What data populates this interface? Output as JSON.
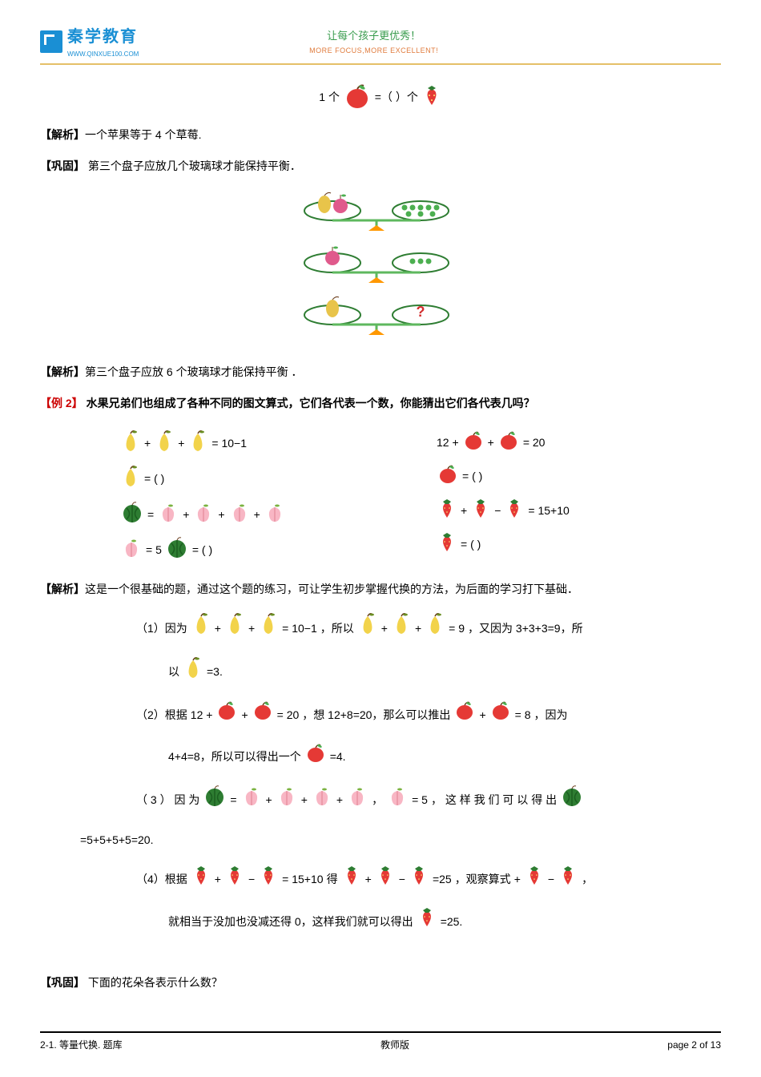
{
  "header": {
    "logo_text": "秦学教育",
    "logo_sub": "WWW.QINXUE100.COM",
    "slogan_cn": "让每个孩子更优秀！",
    "slogan_en": "MORE FOCUS,MORE EXCELLENT!"
  },
  "colors": {
    "brand_blue": "#1a8fd4",
    "accent_gold": "#e5c068",
    "slogan_green": "#3a9c4e",
    "slogan_orange": "#e07b3c",
    "red": "#c00000",
    "apple_red": "#e53935",
    "apple_leaf": "#4caf50",
    "pear_yellow": "#f2d34b",
    "pear_leaf": "#6b8e23",
    "peach_pink": "#f8b6c4",
    "peach_leaf": "#7cb342",
    "melon_green": "#2e7d32",
    "melon_stripe": "#1b5e20",
    "strawberry_red": "#e53935",
    "strawberry_leaf": "#2e7d32",
    "balance_plate": "#5eb85e",
    "balance_base": "#ff9800",
    "plate_outline": "#2e7d32",
    "dot_green": "#4caf50",
    "pear_balance": "#e8c44a",
    "peach_balance": "#e05a8c"
  },
  "top_eq": {
    "prefix": "1 个",
    "mid": " =（        ）个 "
  },
  "analysis1": {
    "label": "【解析】",
    "text": "一个苹果等于 4 个草莓."
  },
  "gonggu1": {
    "label": "【巩固】",
    "text": "  第三个盘子应放几个玻璃球才能保持平衡．"
  },
  "analysis2": {
    "label": "【解析】",
    "text": "第三个盘子应放 6 个玻璃球才能保持平衡 ．"
  },
  "example2": {
    "label": "【例 2】",
    "text": " 水果兄弟们也组成了各种不同的图文算式，它们各代表一个数，你能猜出它们各代表几吗？"
  },
  "eq_set": {
    "left": [
      {
        "items": [
          "pear",
          "+",
          "pear",
          "+",
          "pear",
          "= 10−1"
        ]
      },
      {
        "items": [
          "pear",
          "=  (     )"
        ]
      },
      {
        "items": [
          "melon",
          "=",
          "peach",
          "+",
          "peach",
          "+",
          "peach",
          "+",
          "peach"
        ]
      },
      {
        "items": [
          "peach",
          "= 5    ",
          "melon",
          " =  (     )"
        ]
      }
    ],
    "right": [
      {
        "items": [
          "12 +",
          "apple",
          "+",
          "apple",
          "= 20"
        ]
      },
      {
        "items": [
          "apple",
          "=  (     )"
        ]
      },
      {
        "items": [
          "strawberry",
          "+",
          "strawberry",
          "−",
          "strawberry",
          "= 15+10"
        ]
      },
      {
        "items": [
          "strawberry",
          "=  (     )"
        ]
      }
    ]
  },
  "analysis3": {
    "label": "【解析】",
    "text": "这是一个很基础的题，通过这个题的练习，可让学生初步掌握代换的方法，为后面的学习打下基础．"
  },
  "solutions": {
    "s1_a": "（1）因为",
    "s1_b": "= 10−1",
    "s1_c": "，所以",
    "s1_d": "= 9",
    "s1_e": "，又因为 3+3+3=9，所",
    "s1_f": "以",
    "s1_g": "=3.",
    "s2_a": "（2）根据",
    "s2_b": "12 +",
    "s2_c": "= 20",
    "s2_d": "，想 12+8=20，那么可以推出",
    "s2_e": "= 8",
    "s2_f": "，因为",
    "s2_g": "4+4=8，所以可以得出一个",
    "s2_h": "=4.",
    "s3_a": "（ 3 ） 因 为",
    "s3_b": "，",
    "s3_c": "= 5",
    "s3_d": "， 这 样 我 们 可 以 得 出",
    "s3_e": "=5+5+5+5=20.",
    "s4_a": "（4）根据",
    "s4_b": "= 15+10",
    "s4_c": "得",
    "s4_d": "=25",
    "s4_e": "，观察算式",
    "s4_f": "，",
    "s4_g": "就相当于没加也没减还得 0，这样我们就可以得出",
    "s4_h": "=25."
  },
  "gonggu2": {
    "label": "【巩固】",
    "text": " 下面的花朵各表示什么数？"
  },
  "footer": {
    "left": "2-1. 等量代换. 题库",
    "center": "教师版",
    "right": "page 2 of 13"
  },
  "fruit_icons": {
    "apple": "apple",
    "pear": "pear",
    "peach": "peach",
    "melon": "melon",
    "strawberry": "strawberry"
  }
}
